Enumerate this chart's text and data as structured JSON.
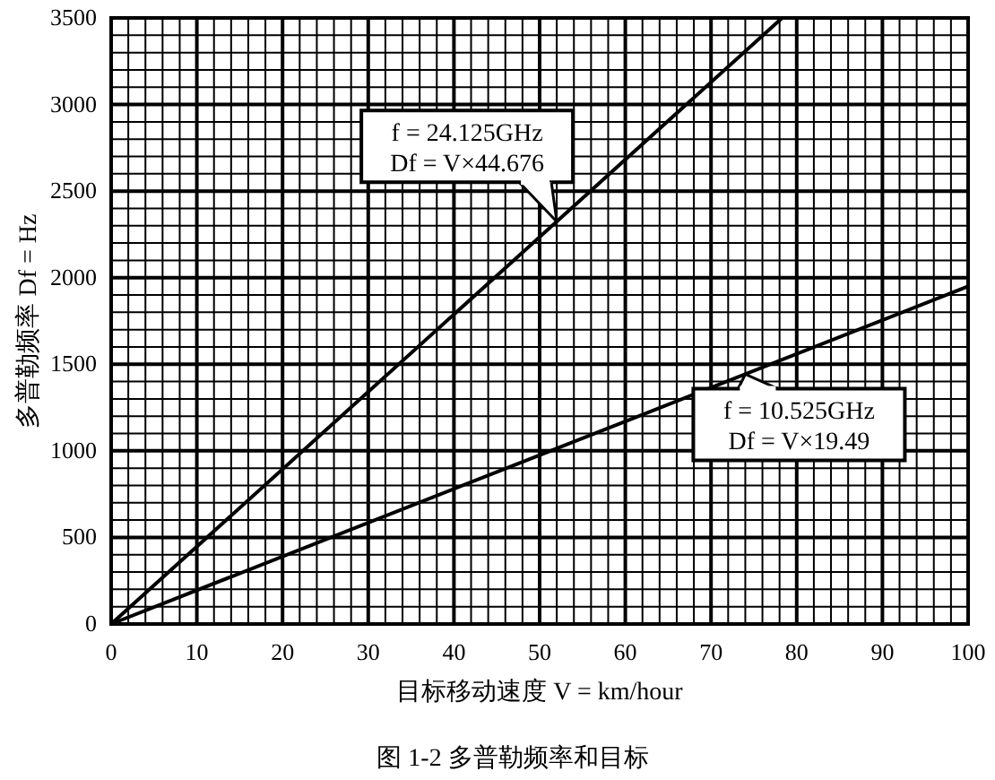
{
  "chart_data": {
    "type": "line",
    "xlabel": "目标移动速度 V = km/hour",
    "ylabel": "多普勒频率 Df = Hz",
    "xlim": [
      0,
      100
    ],
    "ylim": [
      0,
      3500
    ],
    "xticks": [
      0,
      10,
      20,
      30,
      40,
      50,
      60,
      70,
      80,
      90,
      100
    ],
    "yticks": [
      0,
      500,
      1000,
      1500,
      2000,
      2500,
      3000,
      3500
    ],
    "grid": true,
    "line_style": "solid",
    "series": [
      {
        "color": "#000000",
        "x": [
          0,
          78.3
        ],
        "values": [
          0,
          3500
        ]
      },
      {
        "color": "#000000",
        "x": [
          0,
          100
        ],
        "values": [
          0,
          1950
        ]
      }
    ],
    "annotations": [
      {
        "text": "f = 24.125GHz\nDf = V×44.676",
        "x": 52,
        "y": 2323
      },
      {
        "text": "f = 10.525GHz\nDf = V×19.49",
        "x": 74,
        "y": 1442
      },
      "图 1-2  多普勒频率和目标"
    ]
  }
}
